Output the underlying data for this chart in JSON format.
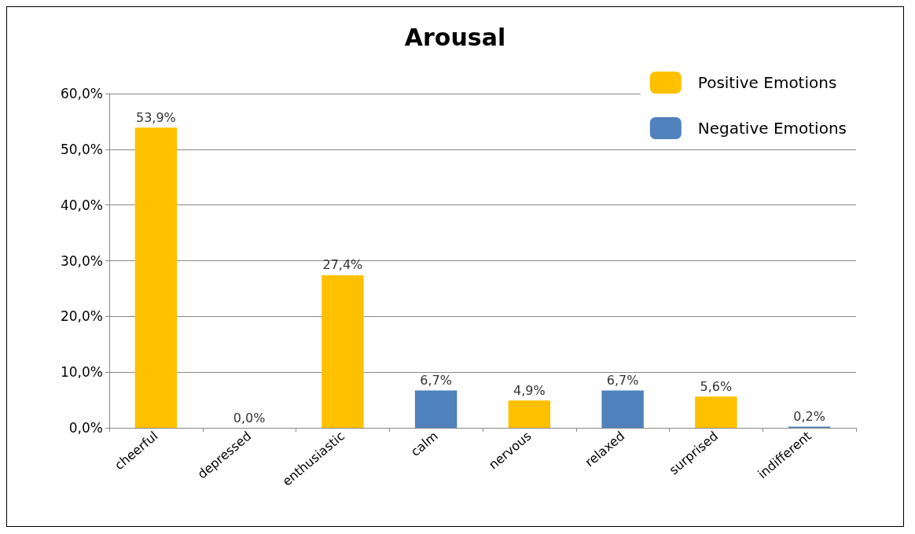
{
  "chart_data": {
    "type": "bar",
    "title": "Arousal",
    "categories": [
      "cheerful",
      "depressed",
      "enthusiastic",
      "calm",
      "nervous",
      "relaxed",
      "surprised",
      "indifferent"
    ],
    "series": [
      {
        "name": "Positive Emotions",
        "color": "#ffc000",
        "values": [
          53.9,
          null,
          27.4,
          null,
          4.9,
          null,
          5.6,
          null
        ],
        "value_labels": [
          "53,9%",
          null,
          "27,4%",
          null,
          "4,9%",
          null,
          "5,6%",
          null
        ]
      },
      {
        "name": "Negative Emotions",
        "color": "#4f81bd",
        "values": [
          null,
          0.0,
          null,
          6.7,
          null,
          6.7,
          null,
          0.2
        ],
        "value_labels": [
          null,
          "0,0%",
          null,
          "6,7%",
          null,
          "6,7%",
          null,
          "0,2%"
        ]
      }
    ],
    "ylim": [
      0,
      60
    ],
    "yticks": [
      {
        "value": 0,
        "label": "0,0%"
      },
      {
        "value": 10,
        "label": "10,0%"
      },
      {
        "value": 20,
        "label": "20,0%"
      },
      {
        "value": 30,
        "label": "30,0%"
      },
      {
        "value": 40,
        "label": "40,0%"
      },
      {
        "value": 50,
        "label": "50,0%"
      },
      {
        "value": 60,
        "label": "60,0%"
      }
    ],
    "grid": "y",
    "legend": "top right"
  }
}
